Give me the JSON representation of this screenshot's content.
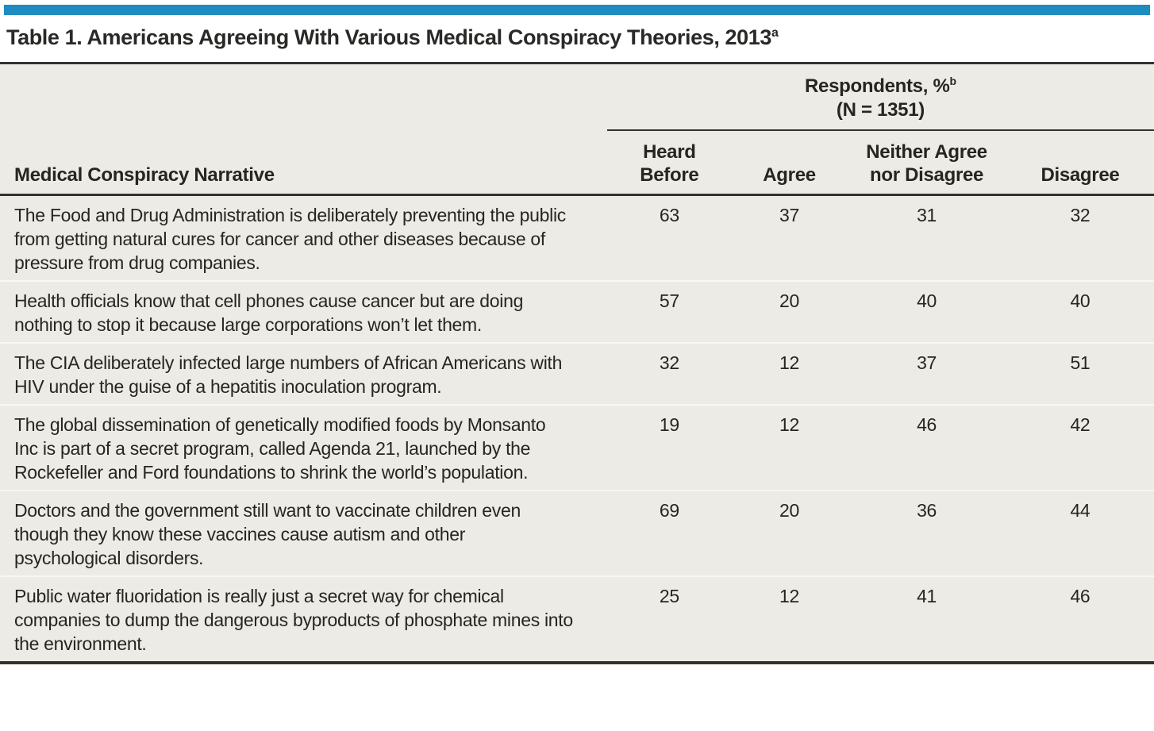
{
  "colors": {
    "accent_bar": "#1d8cc0",
    "table_background": "#ecebe5",
    "rule_dark": "#343230",
    "row_separator": "#f8f7f2",
    "text": "#262522"
  },
  "table1": {
    "title": "Table 1. Americans Agreeing With Various Medical Conspiracy Theories, 2013",
    "title_footnote_mark": "a",
    "header": {
      "stub": "Medical Conspiracy Narrative",
      "spanner": {
        "label": "Respondents, %",
        "footnote_mark": "b",
        "n_line": "(N = 1351)"
      },
      "columns": [
        "Heard\nBefore",
        "Agree",
        "Neither Agree\nnor Disagree",
        "Disagree"
      ]
    },
    "rows": [
      {
        "narrative": "The Food and Drug Administration is deliberately preventing the public from getting natural cures for cancer and other diseases because of pressure from drug companies.",
        "values": [
          "63",
          "37",
          "31",
          "32"
        ]
      },
      {
        "narrative": "Health officials know that cell phones cause cancer but are doing nothing to stop it because large corporations won’t let them.",
        "values": [
          "57",
          "20",
          "40",
          "40"
        ]
      },
      {
        "narrative": "The CIA deliberately infected large numbers of African Americans with HIV under the guise of a hepatitis inoculation program.",
        "values": [
          "32",
          "12",
          "37",
          "51"
        ]
      },
      {
        "narrative": "The global dissemination of genetically modified foods by Monsanto Inc is part of a secret program, called Agenda 21, launched by the Rockefeller and Ford foundations to shrink the world’s population.",
        "values": [
          "19",
          "12",
          "46",
          "42"
        ]
      },
      {
        "narrative": "Doctors and the government still want to vaccinate children even though they know these vaccines cause autism and other psychological disorders.",
        "values": [
          "69",
          "20",
          "36",
          "44"
        ]
      },
      {
        "narrative": "Public water fluoridation is really just a secret way for chemical companies to dump the dangerous byproducts of phosphate mines into the environment.",
        "values": [
          "25",
          "12",
          "41",
          "46"
        ]
      }
    ]
  }
}
